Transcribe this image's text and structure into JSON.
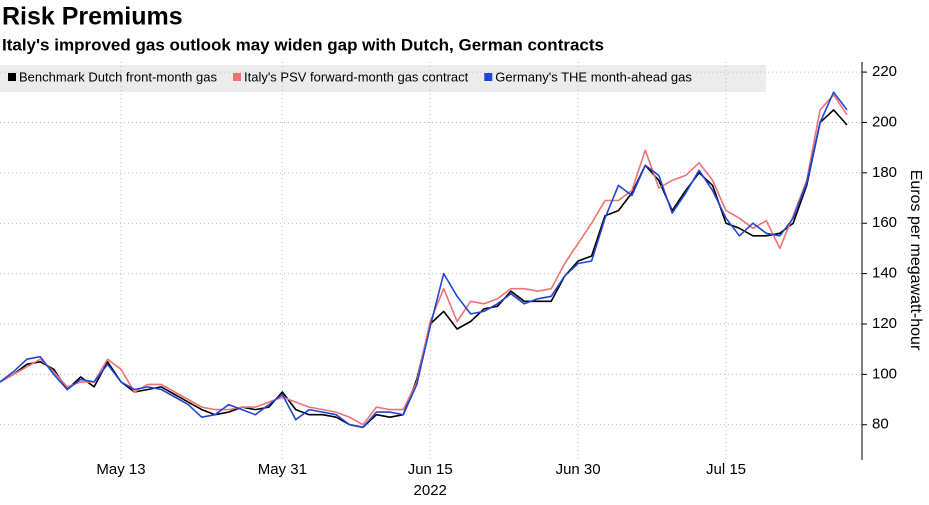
{
  "chart_data": {
    "type": "line",
    "title": "Risk Premiums",
    "subtitle": "Italy's improved gas outlook may widen gap with Dutch, German contracts",
    "y_label": "Euros per megawatt-hour",
    "year_label": "2022",
    "categories": [
      null,
      null,
      null,
      null,
      null,
      null,
      null,
      null,
      null,
      "May 13",
      null,
      null,
      null,
      null,
      null,
      null,
      null,
      null,
      null,
      null,
      null,
      "May 31",
      null,
      null,
      null,
      null,
      null,
      null,
      null,
      null,
      null,
      null,
      "Jun 15",
      null,
      null,
      null,
      null,
      null,
      null,
      null,
      null,
      null,
      null,
      "Jun 30",
      null,
      null,
      null,
      null,
      null,
      null,
      null,
      null,
      null,
      null,
      "Jul 15",
      null,
      null,
      null,
      null,
      null,
      null,
      null,
      null,
      null
    ],
    "series": [
      {
        "name": "Benchmark Dutch front-month gas",
        "color": "#000000",
        "values": [
          97,
          100,
          104,
          105,
          102,
          94,
          99,
          95,
          105,
          97,
          93,
          94,
          95,
          92,
          89,
          86,
          84,
          85,
          87,
          86,
          87,
          93,
          86,
          84,
          84,
          83,
          80,
          79,
          84,
          83,
          84,
          98,
          120,
          125,
          118,
          121,
          126,
          127,
          133,
          129,
          129,
          129,
          139,
          145,
          147,
          163,
          165,
          172,
          183,
          177,
          165,
          173,
          180,
          175,
          160,
          158,
          155,
          155,
          156,
          160,
          175,
          200,
          205,
          199
        ]
      },
      {
        "name": "Italy's PSV forward-month gas contract",
        "color": "#f07272",
        "values": [
          97,
          100,
          103,
          106,
          101,
          95,
          97,
          97,
          106,
          102,
          93,
          96,
          96,
          93,
          90,
          87,
          86,
          86,
          87,
          87,
          89,
          91,
          89,
          87,
          86,
          85,
          83,
          80,
          87,
          86,
          86,
          97,
          121,
          134,
          121,
          129,
          128,
          130,
          134,
          134,
          133,
          134,
          144,
          152,
          160,
          169,
          169,
          173,
          189,
          174,
          177,
          179,
          184,
          177,
          165,
          162,
          158,
          161,
          150,
          163,
          177,
          205,
          211,
          203
        ]
      },
      {
        "name": "Germany's THE month-ahead gas",
        "color": "#2146d6",
        "values": [
          97,
          101,
          106,
          107,
          100,
          94,
          98,
          97,
          104,
          97,
          94,
          95,
          94,
          91,
          88,
          83,
          84,
          88,
          86,
          84,
          88,
          92,
          82,
          86,
          85,
          84,
          80,
          79,
          85,
          85,
          84,
          96,
          119,
          140,
          131,
          124,
          125,
          128,
          132,
          128,
          130,
          131,
          139,
          144,
          145,
          162,
          175,
          171,
          183,
          179,
          164,
          172,
          181,
          173,
          162,
          155,
          160,
          156,
          155,
          162,
          176,
          200,
          212,
          205
        ]
      }
    ],
    "ylim": [
      66,
      224
    ],
    "yticks": [
      80,
      100,
      120,
      140,
      160,
      180,
      200,
      220
    ],
    "grid": true,
    "legend": "top-left"
  }
}
